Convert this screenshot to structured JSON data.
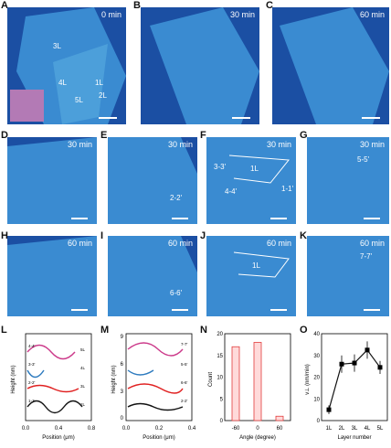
{
  "panel_letters": [
    "A",
    "B",
    "C",
    "D",
    "E",
    "F",
    "G",
    "H",
    "I",
    "J",
    "K",
    "L",
    "M",
    "N",
    "O"
  ],
  "times": {
    "a": "0 min",
    "b": "30 min",
    "c": "60 min",
    "d": "30 min",
    "e": "30 min",
    "f": "30 min",
    "g": "30 min",
    "h": "60 min",
    "i": "60 min",
    "j": "60 min",
    "k": "60 min"
  },
  "layer_labels_a": [
    "3L",
    "4L",
    "5L",
    "1L",
    "2L"
  ],
  "region_labels": {
    "f": "1L",
    "j": "1L"
  },
  "cut_labels": {
    "f_a": "3-3'",
    "f_b": "1-1'",
    "f_c": "4-4'",
    "e": "2-2'",
    "g": "5-5'",
    "i": "6-6'",
    "k": "7-7'"
  },
  "plot_l": {
    "ylabel": "Height (nm)",
    "xlabel": "Position (μm)",
    "ticks_x": [
      "0.0",
      "0.4",
      "0.8"
    ],
    "series": [
      "4-4'",
      "3-3'",
      "2-2'",
      "1-1'"
    ],
    "right_labels": [
      "5L",
      "4L",
      "3L",
      "2L"
    ]
  },
  "plot_m": {
    "ylabel": "Height (nm)",
    "xlabel": "Position (μm)",
    "ticks_x": [
      "0.0",
      "0.2",
      "0.4"
    ],
    "ticks_y": [
      "0",
      "3",
      "6",
      "9"
    ],
    "series": [
      "7-7'",
      "5-5'",
      "6-6'",
      "2-2'"
    ]
  },
  "chart_data": [
    {
      "type": "bar",
      "title": "",
      "xlabel": "Angle (degree)",
      "ylabel": "Count",
      "categories": [
        "-60",
        "0",
        "60"
      ],
      "values": [
        17,
        18,
        1
      ],
      "ylim": [
        0,
        20
      ],
      "ticks_y": [
        "0",
        "5",
        "10",
        "15",
        "20"
      ],
      "ticks_x": [
        "-60",
        "0",
        "60"
      ]
    },
    {
      "type": "line",
      "title": "",
      "xlabel": "Layer number",
      "ylabel": "v⊥ (nm/min)",
      "categories": [
        "1L",
        "2L",
        "3L",
        "4L",
        "5L"
      ],
      "values": [
        5,
        26,
        26.5,
        32.5,
        24.5
      ],
      "errors": [
        2,
        4,
        4,
        4,
        3
      ],
      "ylim": [
        0,
        40
      ],
      "ticks_y": [
        "0",
        "10",
        "20",
        "30",
        "40"
      ]
    }
  ],
  "colors": {
    "panel_bg": "#1b4fa3",
    "flake": "#3f96d8",
    "bar_edge": "#e23c3c",
    "line": "#111111"
  }
}
